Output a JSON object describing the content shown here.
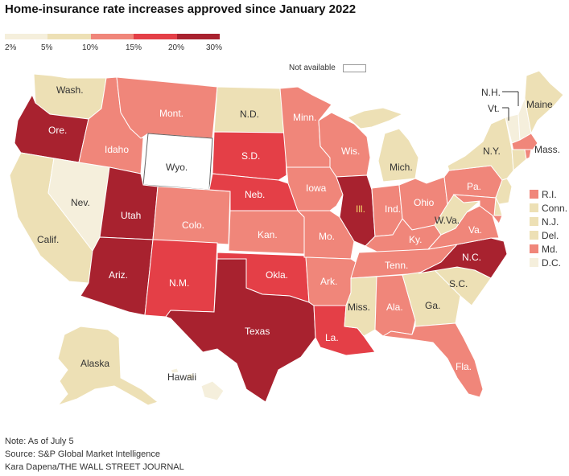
{
  "title": "Home-insurance rate increases approved since January 2022",
  "legend": {
    "ticks": [
      "2%",
      "5%",
      "10%",
      "15%",
      "20%",
      "30%"
    ],
    "colors": [
      "#f5efdc",
      "#ede0b5",
      "#f0867a",
      "#e43f47",
      "#a8222f"
    ],
    "not_available": "Not available"
  },
  "colors": {
    "bin1": "#f5efdc",
    "bin2": "#ede0b5",
    "bin3": "#f0867a",
    "bin4": "#e43f47",
    "bin5": "#a8222f",
    "na": "#ffffff",
    "label_light": "#ffffff",
    "label_dark": "#333333",
    "illinois_label": "#f3d36a"
  },
  "states": {
    "WA": "Wash.",
    "OR": "Ore.",
    "CA": "Calif.",
    "NV": "Nev.",
    "ID": "Idaho",
    "MT": "Mont.",
    "WY": "Wyo.",
    "UT": "Utah",
    "AZ": "Ariz.",
    "CO": "Colo.",
    "NM": "N.M.",
    "ND": "N.D.",
    "SD": "S.D.",
    "NE": "Neb.",
    "KS": "Kan.",
    "OK": "Okla.",
    "TX": "Texas",
    "MN": "Minn.",
    "IA": "Iowa",
    "MO": "Mo.",
    "AR": "Ark.",
    "LA": "La.",
    "WI": "Wis.",
    "IL": "Ill.",
    "MI": "Mich.",
    "IN": "Ind.",
    "OH": "Ohio",
    "KY": "Ky.",
    "TN": "Tenn.",
    "MS": "Miss.",
    "AL": "Ala.",
    "GA": "Ga.",
    "FL": "Fla.",
    "SC": "S.C.",
    "NC": "N.C.",
    "VA": "Va.",
    "WV": "W.Va.",
    "PA": "Pa.",
    "NY": "N.Y.",
    "VT": "Vt.",
    "NH": "N.H.",
    "ME": "Maine",
    "MA": "Mass.",
    "AK": "Alaska",
    "HI": "Hawaii"
  },
  "northeast_legend": [
    {
      "label": "R.I.",
      "bin": "bin3"
    },
    {
      "label": "Conn.",
      "bin": "bin2"
    },
    {
      "label": "N.J.",
      "bin": "bin2"
    },
    {
      "label": "Del.",
      "bin": "bin2"
    },
    {
      "label": "Md.",
      "bin": "bin3"
    },
    {
      "label": "D.C.",
      "bin": "bin1"
    }
  ],
  "footer": {
    "note": "Note: As of July 5",
    "source": "Source: S&P Global Market Intelligence",
    "credit": "Kara Dapena/THE WALL STREET JOURNAL"
  }
}
